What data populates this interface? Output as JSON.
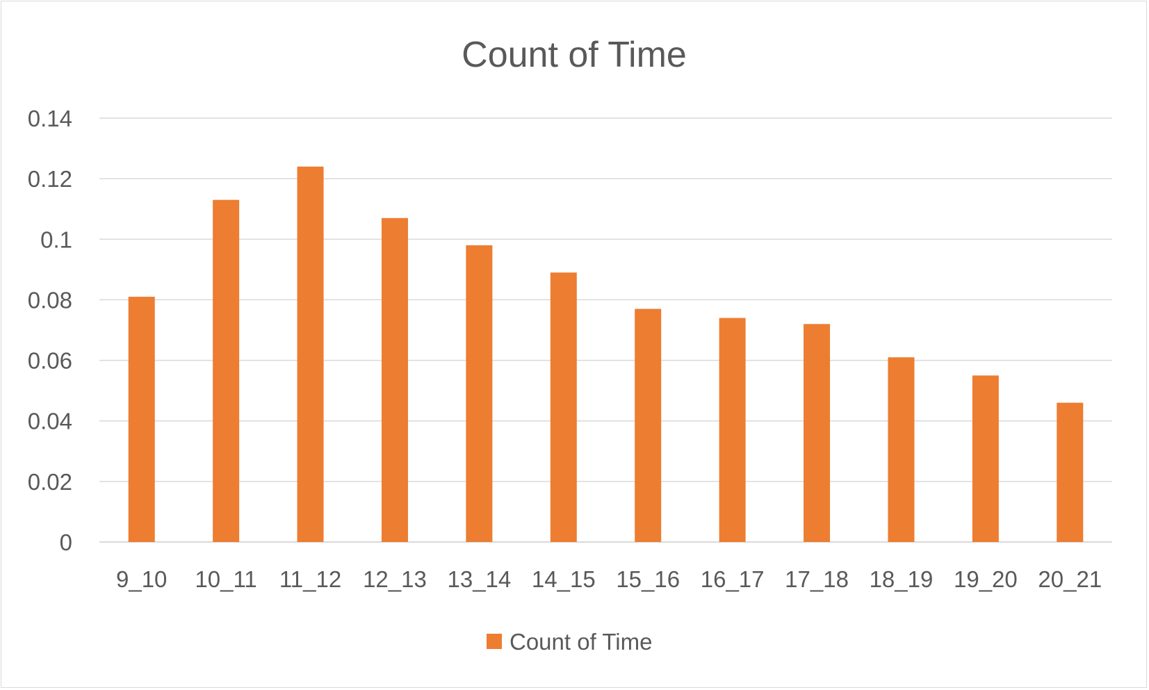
{
  "chart_data": {
    "type": "bar",
    "title": "Count of Time",
    "xlabel": "",
    "ylabel": "",
    "categories": [
      "9_10",
      "10_11",
      "11_12",
      "12_13",
      "13_14",
      "14_15",
      "15_16",
      "16_17",
      "17_18",
      "18_19",
      "19_20",
      "20_21"
    ],
    "series": [
      {
        "name": "Count of Time",
        "color": "#ED7D31",
        "values": [
          0.081,
          0.113,
          0.124,
          0.107,
          0.098,
          0.089,
          0.077,
          0.074,
          0.072,
          0.061,
          0.055,
          0.046
        ]
      }
    ],
    "ylim": [
      0,
      0.14
    ],
    "yticks": [
      "0",
      "0.02",
      "0.04",
      "0.06",
      "0.08",
      "0.1",
      "0.12",
      "0.14"
    ],
    "grid": true,
    "legend_position": "bottom"
  }
}
